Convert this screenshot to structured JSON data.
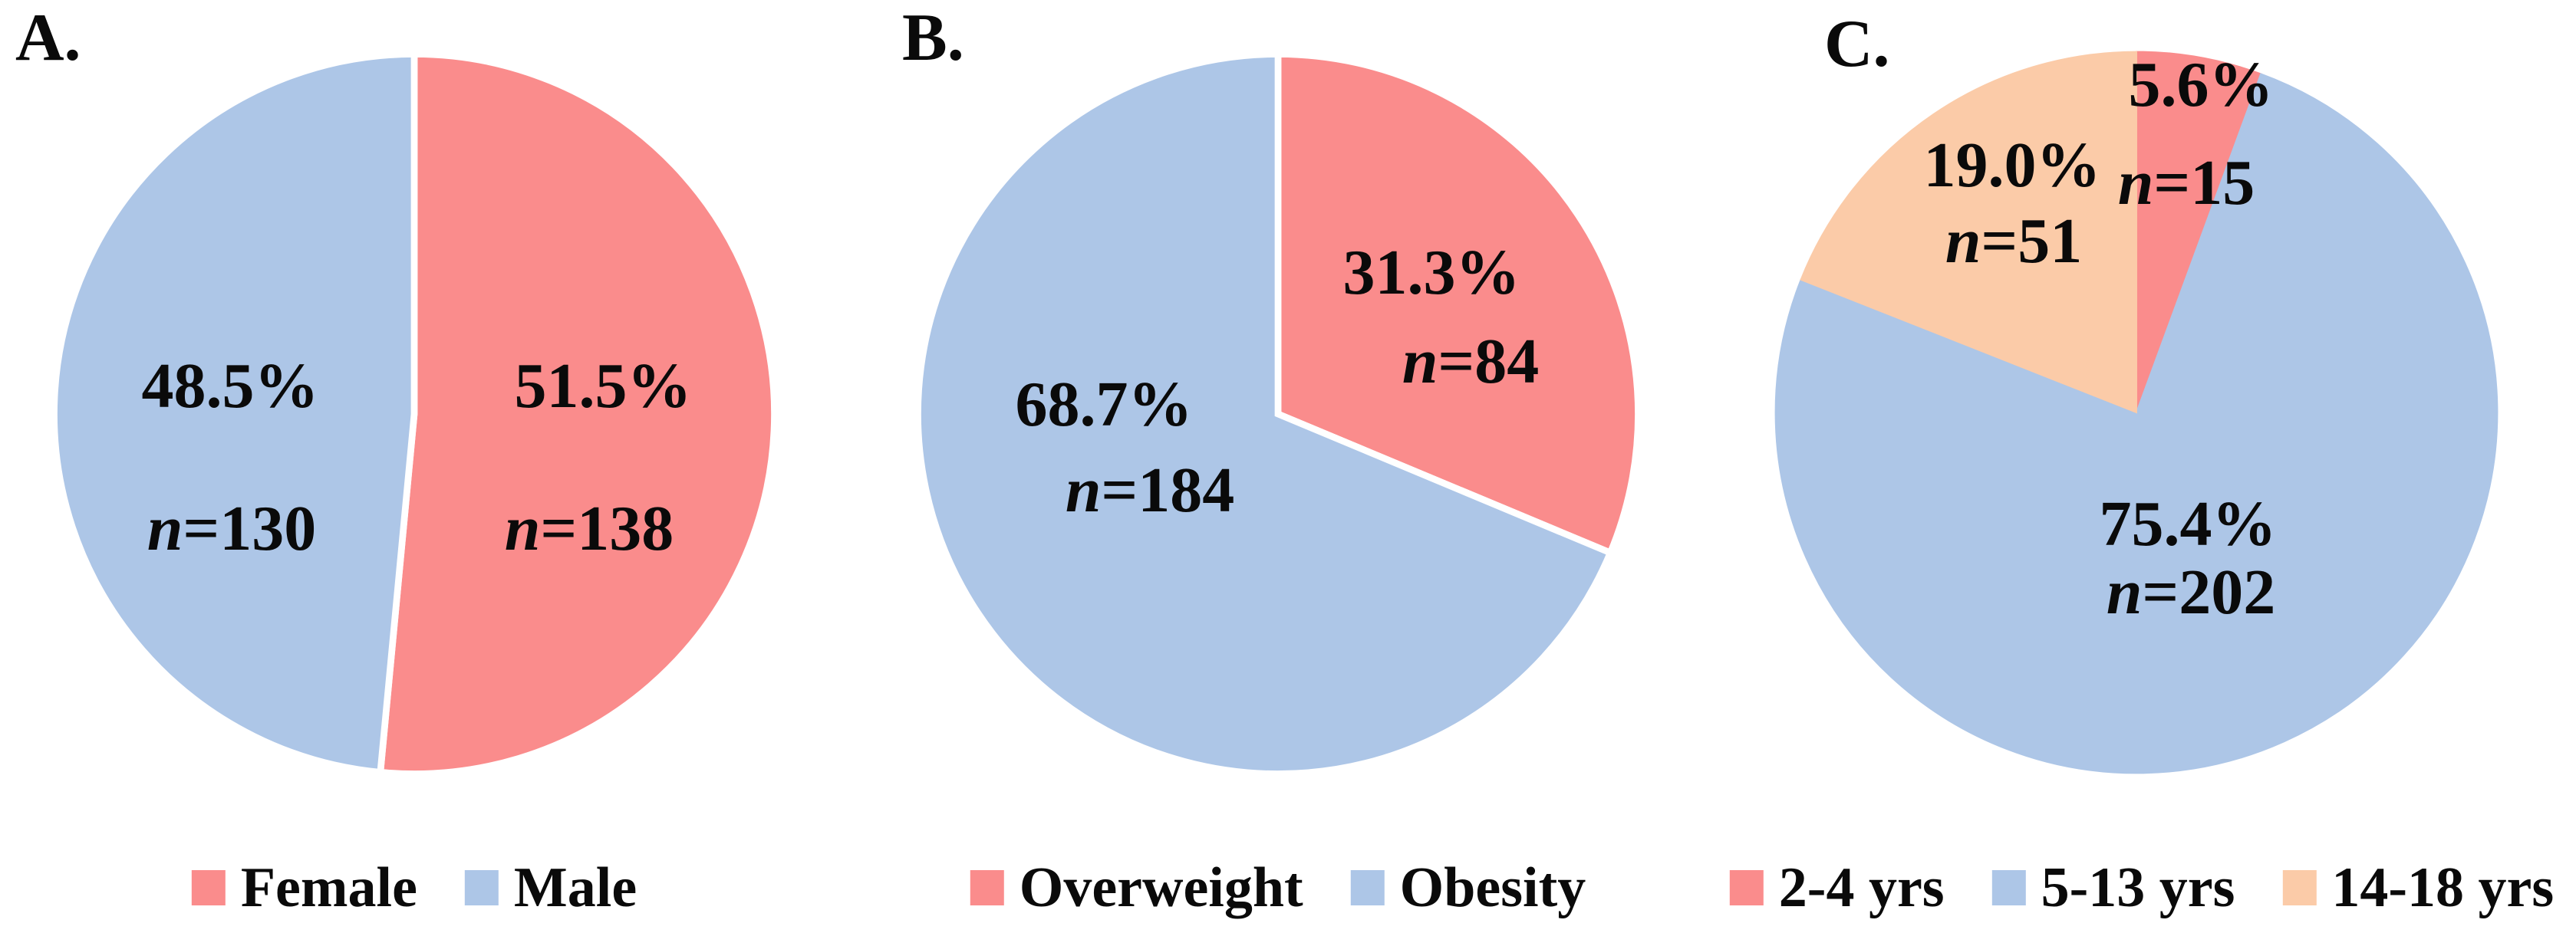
{
  "figure": {
    "n_symbol": "n"
  },
  "chart_data": [
    {
      "type": "pie",
      "panel_label": "A.",
      "categories": [
        "Female",
        "Male"
      ],
      "slices": [
        {
          "label": "Female",
          "pct": 51.5,
          "pct_label": "51.5%",
          "n": 138,
          "n_eq": "=138",
          "color": "#FA8C8C"
        },
        {
          "label": "Male",
          "pct": 48.5,
          "pct_label": "48.5%",
          "n": 130,
          "n_eq": "=130",
          "color": "#ADC6E7"
        }
      ],
      "start_angle_deg": 0,
      "direction": "clockwise",
      "slice_border_color": "#FFFFFF",
      "slice_border_width": 9,
      "legend_position": "bottom"
    },
    {
      "type": "pie",
      "panel_label": "B.",
      "categories": [
        "Overweight",
        "Obesity"
      ],
      "slices": [
        {
          "label": "Overweight",
          "pct": 31.3,
          "pct_label": "31.3%",
          "n": 84,
          "n_eq": "=84",
          "color": "#FA8C8C"
        },
        {
          "label": "Obesity",
          "pct": 68.7,
          "pct_label": "68.7%",
          "n": 184,
          "n_eq": "=184",
          "color": "#ADC6E7"
        }
      ],
      "start_angle_deg": 0,
      "direction": "clockwise",
      "slice_border_color": "#FFFFFF",
      "slice_border_width": 9,
      "legend_position": "bottom"
    },
    {
      "type": "pie",
      "panel_label": "C.",
      "categories": [
        "2-4 yrs",
        "5-13 yrs",
        "14-18 yrs"
      ],
      "slices": [
        {
          "label": "2-4 yrs",
          "pct": 5.6,
          "pct_label": "5.6%",
          "n": 15,
          "n_eq": "=15",
          "color": "#FA8C8C"
        },
        {
          "label": "5-13 yrs",
          "pct": 75.4,
          "pct_label": "75.4%",
          "n": 202,
          "n_eq": "=202",
          "color": "#ADC6E7"
        },
        {
          "label": "14-18 yrs",
          "pct": 19.0,
          "pct_label": "19.0%",
          "n": 51,
          "n_eq": "=51",
          "color": "#FBCBA8"
        }
      ],
      "start_angle_deg": 0,
      "direction": "clockwise",
      "slice_border_color": "none",
      "slice_border_width": 0,
      "legend_position": "bottom"
    }
  ]
}
